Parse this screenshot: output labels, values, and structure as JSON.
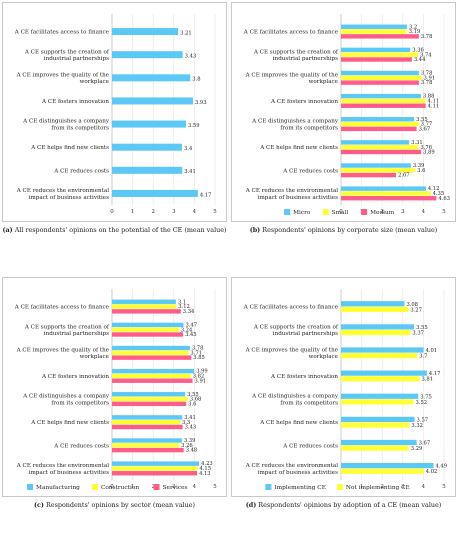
{
  "colors": {
    "micro": "#5bc8f5",
    "small": "#ffff33",
    "medium": "#ff5c8a"
  },
  "categories": [
    "A CE facilitates access to finance",
    "A CE supports the creation of|industrial partnerships",
    "A CE improves the quality of the|workplace",
    "A CE fosters innovation",
    "A CE distinguishes a company|from its competitors",
    "A CE helps find new clients",
    "A CE reduces costs",
    "A CE reduces the environmental|impact of business activities"
  ],
  "chart_data": [
    {
      "type": "bar",
      "orientation": "horizontal",
      "panel_label": "(a)",
      "caption": "All respondents' opinions on the potential of the CE (mean value)",
      "xlim": [
        0,
        5
      ],
      "xticks": [
        0,
        1,
        2,
        3,
        4,
        5
      ],
      "series": [
        {
          "name": "",
          "color": "#5bc8f5",
          "values": [
            3.21,
            3.43,
            3.8,
            3.93,
            3.59,
            3.4,
            3.41,
            4.17
          ]
        }
      ],
      "legend": []
    },
    {
      "type": "bar",
      "orientation": "horizontal",
      "panel_label": "(b)",
      "caption": "Respondents' opinions by corporate size (mean value)",
      "xlim": [
        0,
        5
      ],
      "xticks": [
        0,
        1,
        2,
        3,
        4,
        5
      ],
      "series": [
        {
          "name": "Micro",
          "color": "#5bc8f5",
          "values": [
            3.2,
            3.36,
            3.78,
            3.88,
            3.55,
            3.31,
            3.39,
            4.12
          ]
        },
        {
          "name": "Small",
          "color": "#ffff33",
          "values": [
            3.19,
            3.74,
            3.91,
            4.11,
            3.77,
            3.76,
            3.6,
            4.35
          ]
        },
        {
          "name": "Medium",
          "color": "#ff5c8a",
          "values": [
            3.78,
            3.44,
            3.78,
            4.11,
            3.67,
            3.89,
            2.67,
            4.63
          ]
        }
      ],
      "legend": [
        "Micro",
        "Small",
        "Medium"
      ]
    },
    {
      "type": "bar",
      "orientation": "horizontal",
      "panel_label": "(c)",
      "caption": "Respondents' opinions by sector (mean value)",
      "xlim": [
        0,
        5
      ],
      "xticks": [
        0,
        1,
        2,
        3,
        4,
        5
      ],
      "series": [
        {
          "name": "Manufacturing",
          "color": "#5bc8f5",
          "values": [
            3.1,
            3.47,
            3.78,
            3.99,
            3.55,
            3.41,
            3.39,
            4.23
          ]
        },
        {
          "name": "Construction",
          "color": "#ffff33",
          "values": [
            3.12,
            3.24,
            3.71,
            3.82,
            3.68,
            3.3,
            3.26,
            4.15
          ]
        },
        {
          "name": "Services",
          "color": "#ff5c8a",
          "values": [
            3.34,
            3.45,
            3.85,
            3.91,
            3.6,
            3.43,
            3.48,
            4.13
          ]
        }
      ],
      "legend": [
        "Manufacturing",
        "Construction",
        "Services"
      ]
    },
    {
      "type": "bar",
      "orientation": "horizontal",
      "panel_label": "(d)",
      "caption": "Respondents' opinions by adoption of a CE (mean value)",
      "xlim": [
        0,
        5
      ],
      "xticks": [
        0,
        1,
        2,
        3,
        4,
        5
      ],
      "series": [
        {
          "name": "Implementing CE",
          "color": "#5bc8f5",
          "values": [
            3.08,
            3.55,
            4.01,
            4.17,
            3.75,
            3.57,
            3.67,
            4.49
          ]
        },
        {
          "name": "Not implementing CE",
          "color": "#ffff33",
          "values": [
            3.27,
            3.37,
            3.7,
            3.81,
            3.52,
            3.32,
            3.29,
            4.02
          ]
        }
      ],
      "legend": [
        "Implementing CE",
        "Not implementing CE"
      ]
    }
  ]
}
